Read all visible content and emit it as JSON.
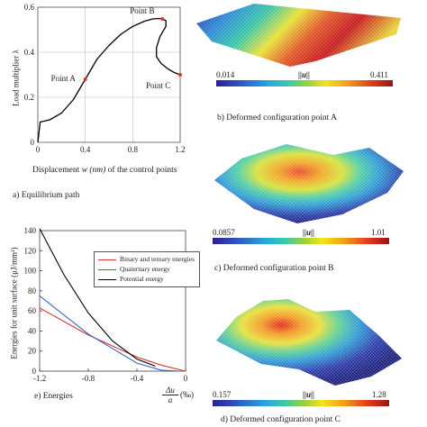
{
  "chart_data": [
    {
      "type": "line",
      "title": "a) Equilibrium path",
      "xlabel_pre": "Displacement",
      "xlabel_var": "w",
      "xlabel_unit": "(nm)",
      "xlabel_post": "of the control points",
      "ylabel": "Load multiplier λ",
      "xlim": [
        0,
        1.2
      ],
      "ylim": [
        0,
        0.6
      ],
      "xticks": [
        "0",
        "0.4",
        "0.8",
        "1.2"
      ],
      "yticks": [
        "0",
        "0.2",
        "0.4",
        "0.6"
      ],
      "grid": true,
      "series": [
        {
          "x": [
            0,
            0.02,
            0.1,
            0.2,
            0.3,
            0.4,
            0.5,
            0.6,
            0.7,
            0.8,
            0.9,
            0.97,
            1.02,
            1.05,
            1.08,
            1.08,
            1.03,
            1.0,
            1.0,
            1.04,
            1.1,
            1.15,
            1.2
          ],
          "y": [
            0.0,
            0.09,
            0.1,
            0.13,
            0.19,
            0.28,
            0.37,
            0.43,
            0.48,
            0.515,
            0.538,
            0.548,
            0.55,
            0.548,
            0.54,
            0.515,
            0.47,
            0.42,
            0.38,
            0.35,
            0.325,
            0.31,
            0.3
          ]
        }
      ],
      "points": [
        {
          "label": "Point A",
          "x": 0.4,
          "y": 0.28
        },
        {
          "label": "Point B",
          "x": 1.05,
          "y": 0.548
        },
        {
          "label": "Point C",
          "x": 1.2,
          "y": 0.3
        }
      ]
    },
    {
      "type": "line",
      "title": "e) Energies",
      "xlabel_num": "Δu",
      "xlabel_den": "a",
      "xlabel_unit": "(‰)",
      "ylabel": "Energies for unit surface (μJ/mm²)",
      "xlim": [
        -1.2,
        0
      ],
      "ylim": [
        0,
        140
      ],
      "xticks": [
        "-1.2",
        "-0.8",
        "-0.4",
        "0"
      ],
      "yticks": [
        "0",
        "20",
        "40",
        "60",
        "80",
        "100",
        "120",
        "140"
      ],
      "grid": false,
      "legend_position": "top-right",
      "series": [
        {
          "name": "Binary and ternary energies",
          "color": "#e03030",
          "x": [
            -1.2,
            -0.8,
            -0.4,
            -0.2,
            0
          ],
          "y": [
            63,
            36,
            14,
            6,
            0
          ]
        },
        {
          "name": "Quaternary energy",
          "color": "#3a66c0",
          "x": [
            -1.2,
            -0.8,
            -0.4,
            -0.2,
            -0.05
          ],
          "y": [
            75,
            37,
            8,
            1,
            0
          ]
        },
        {
          "name": "Potential energy",
          "color": "#000000",
          "x": [
            -1.2,
            -1.0,
            -0.8,
            -0.6,
            -0.4,
            -0.25
          ],
          "y": [
            142,
            96,
            58,
            30,
            12,
            5
          ]
        }
      ]
    }
  ],
  "panels": {
    "b": {
      "min": "0.014",
      "max": "0.411",
      "symbol": "||u||",
      "caption": "b) Deformed configuration point A"
    },
    "c": {
      "min": "0.0857",
      "max": "1.01",
      "symbol": "||u||",
      "caption": "c) Deformed configuration point B"
    },
    "d": {
      "min": "0.157",
      "max": "1.28",
      "symbol": "||u||",
      "caption": "d) Deformed configuration point C"
    }
  },
  "colors": {
    "curve": "#000000",
    "point_marker": "#e83030",
    "grid": "#bdbdbd"
  }
}
